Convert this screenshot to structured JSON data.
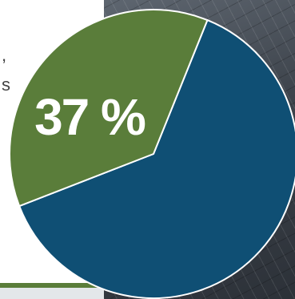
{
  "background": {
    "text_fragments": [
      ",",
      "s"
    ]
  },
  "chart_data": {
    "type": "pie",
    "slices": [
      {
        "value": 63,
        "color": "#0f4f74"
      },
      {
        "value": 37,
        "color": "#5a7d3a",
        "label": "37 %"
      }
    ]
  }
}
